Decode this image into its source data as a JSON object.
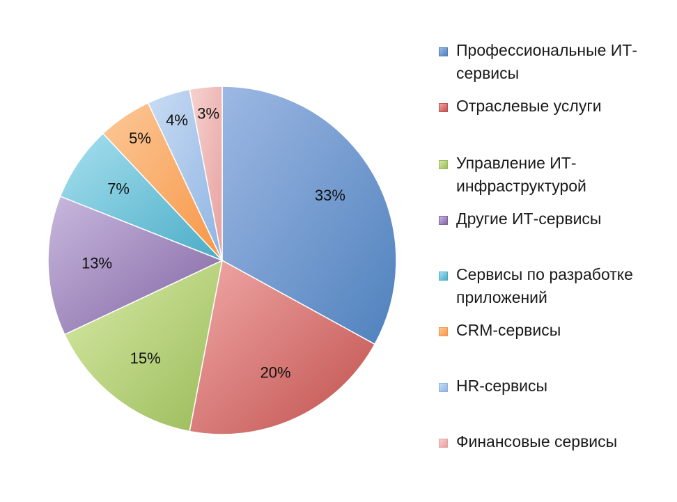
{
  "chart_data": {
    "type": "pie",
    "slices": [
      {
        "label": "Профессиональные ИТ-сервисы",
        "value": 33,
        "value_label": "33%",
        "color": "#4f81bd",
        "color_light": "#9db8e3"
      },
      {
        "label": "Отраслевые услуги",
        "value": 20,
        "value_label": "20%",
        "color": "#c0504d",
        "color_light": "#f0a9a7"
      },
      {
        "label": "Управление ИТ-инфраструктурой",
        "value": 15,
        "value_label": "15%",
        "color": "#9bbb59",
        "color_light": "#d8eba8"
      },
      {
        "label": "Другие ИТ-сервисы",
        "value": 13,
        "value_label": "13%",
        "color": "#8064a2",
        "color_light": "#c9b8de"
      },
      {
        "label": "Сервисы по разработке приложений",
        "value": 7,
        "value_label": "7%",
        "color": "#4bacc6",
        "color_light": "#a6e0ef"
      },
      {
        "label": "CRM-сервисы",
        "value": 5,
        "value_label": "5%",
        "color": "#f79646",
        "color_light": "#fcc898"
      },
      {
        "label": "HR-сервисы",
        "value": 4,
        "value_label": "4%",
        "color": "#8eb4e3",
        "color_light": "#c9dcf3"
      },
      {
        "label": "Финансовые сервисы",
        "value": 3,
        "value_label": "3%",
        "color": "#e6a09e",
        "color_light": "#f6d2d0"
      }
    ],
    "start_angle": "12 o'clock",
    "direction": "clockwise",
    "legend_position": "right"
  }
}
